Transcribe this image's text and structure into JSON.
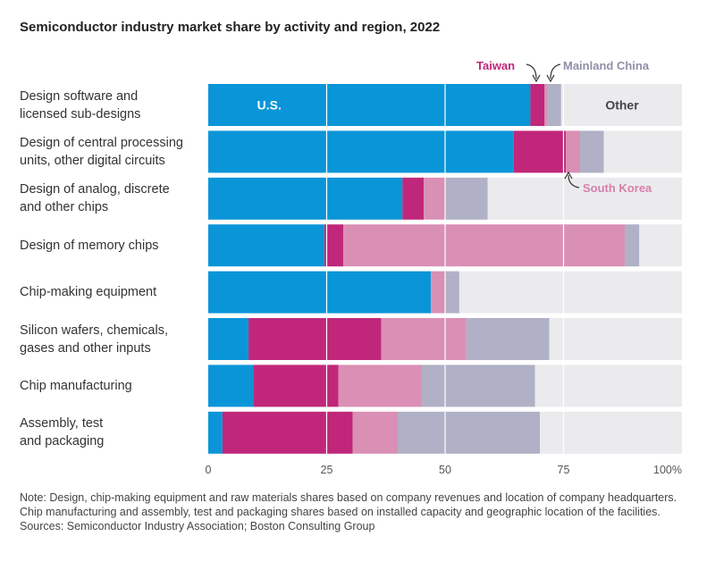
{
  "title": "Semiconductor industry market share by activity and region, 2022",
  "colors": {
    "U.S.": "#0a95d8",
    "Taiwan": "#c0277a",
    "South Korea": "#da8fb4",
    "Mainland China": "#b0b0c6",
    "Other": "#ebebee"
  },
  "chart_data": {
    "type": "bar",
    "orientation": "horizontal",
    "stacked": true,
    "categories": [
      "Design software and\nlicensed sub-designs",
      "Design of central processing\nunits, other digital circuits",
      "Design of analog, discrete\nand other chips",
      "Design of memory chips",
      "Chip-making equipment",
      "Silicon wafers, chemicals,\ngases and other inputs",
      "Chip manufacturing",
      "Assembly, test\nand packaging"
    ],
    "series": [
      {
        "name": "U.S.",
        "values": [
          68,
          64.5,
          41,
          24.5,
          47,
          8.5,
          9.5,
          3
        ]
      },
      {
        "name": "Taiwan",
        "values": [
          3,
          11,
          4.5,
          4,
          0,
          28,
          18,
          27.5
        ]
      },
      {
        "name": "South Korea",
        "values": [
          0.5,
          3,
          4.5,
          59.5,
          3,
          18,
          17.5,
          9.5
        ]
      },
      {
        "name": "Mainland China",
        "values": [
          3,
          5,
          9,
          3,
          3,
          17.5,
          24,
          30
        ]
      },
      {
        "name": "Other",
        "values": [
          25.5,
          16.5,
          41,
          9,
          47,
          28,
          31,
          30
        ]
      }
    ],
    "xlim": [
      0,
      100
    ],
    "xticks": [
      "0",
      "25",
      "50",
      "75",
      "100%"
    ],
    "inline_labels": {
      "U.S.": "U.S.",
      "Other": "Other"
    },
    "callouts": {
      "taiwan": "Taiwan",
      "mainland_china": "Mainland China",
      "south_korea": "South Korea"
    },
    "grid": true,
    "legend": "inline callouts"
  },
  "note": {
    "text": "Note: Design, chip-making equipment and raw materials shares based on company revenues and location of company headquarters. Chip manufacturing and assembly, test and packaging shares based on installed capacity and geographic location of the facilities.",
    "sources": "Sources: Semiconductor Industry Association; Boston Consulting Group"
  }
}
